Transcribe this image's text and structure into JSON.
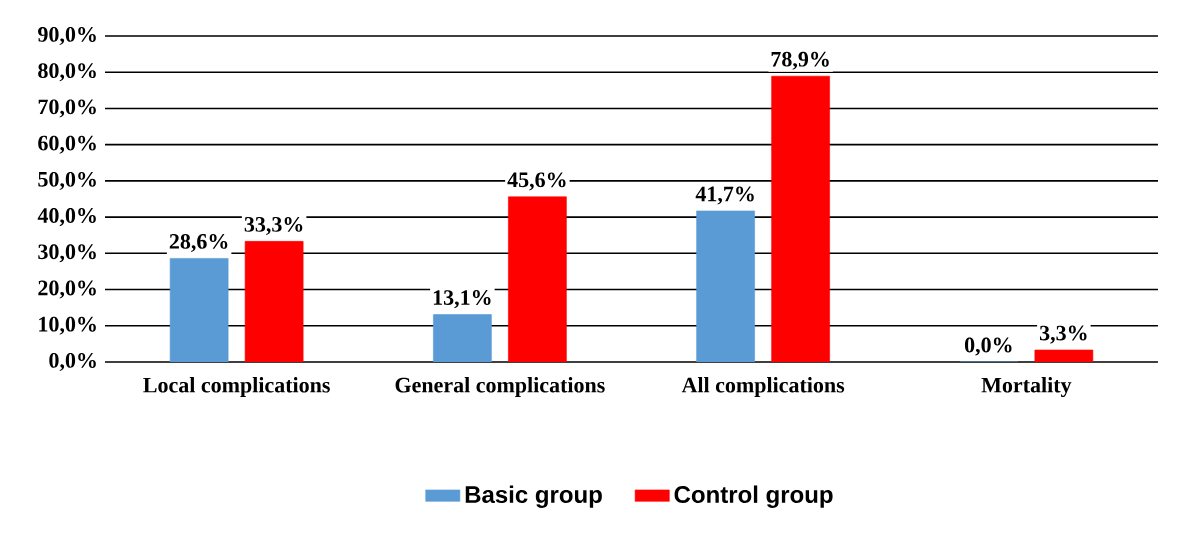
{
  "chart_data": {
    "type": "bar",
    "categories": [
      "Local complications",
      "General complications",
      "All complications",
      "Mortality"
    ],
    "series": [
      {
        "name": "Basic group",
        "color": "#5b9bd5",
        "values": [
          28.6,
          13.1,
          41.7,
          0.0
        ],
        "value_labels": [
          "28,6%",
          "13,1%",
          "41,7%",
          "0,0%"
        ]
      },
      {
        "name": "Control group",
        "color": "#ff0000",
        "values": [
          33.3,
          45.6,
          78.9,
          3.3
        ],
        "value_labels": [
          "33,3%",
          "45,6%",
          "78,9%",
          "3,3%"
        ]
      }
    ],
    "ylim": [
      0,
      90
    ],
    "yticks": [
      {
        "value": 0,
        "label": "0,0%"
      },
      {
        "value": 10,
        "label": "10,0%"
      },
      {
        "value": 20,
        "label": "20,0%"
      },
      {
        "value": 30,
        "label": "30,0%"
      },
      {
        "value": 40,
        "label": "40,0%"
      },
      {
        "value": 50,
        "label": "50,0%"
      },
      {
        "value": 60,
        "label": "60,0%"
      },
      {
        "value": 70,
        "label": "70,0%"
      },
      {
        "value": 80,
        "label": "80,0%"
      },
      {
        "value": 90,
        "label": "90,0%"
      }
    ],
    "grid": "y",
    "legend": "bottom"
  }
}
